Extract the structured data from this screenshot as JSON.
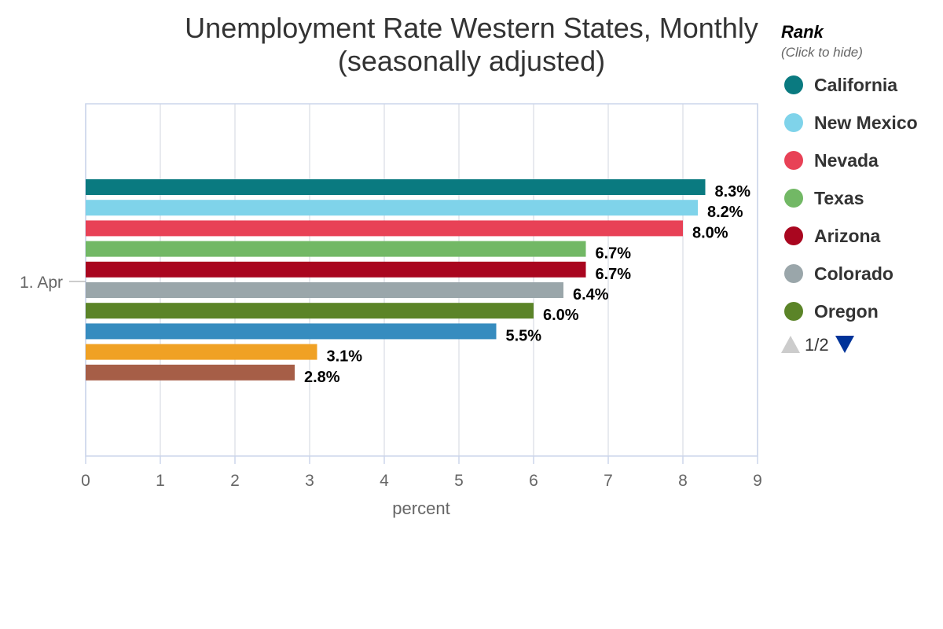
{
  "chart_data": {
    "type": "bar",
    "orientation": "horizontal",
    "title": "Unemployment Rate Western States, Monthly",
    "subtitle": "(seasonally adjusted)",
    "categories": [
      "1. Apr"
    ],
    "xlabel": "percent",
    "xlim": [
      0,
      9
    ],
    "ticks": [
      "0",
      "1",
      "2",
      "3",
      "4",
      "5",
      "6",
      "7",
      "8",
      "9"
    ],
    "grid": true,
    "series": [
      {
        "name": "California",
        "values": [
          8.3
        ],
        "label": "8.3%",
        "color": "#0a7a80"
      },
      {
        "name": "New Mexico",
        "values": [
          8.2
        ],
        "label": "8.2%",
        "color": "#7fd3ea"
      },
      {
        "name": "Nevada",
        "values": [
          8.0
        ],
        "label": "8.0%",
        "color": "#e84156"
      },
      {
        "name": "Texas",
        "values": [
          6.7
        ],
        "label": "6.7%",
        "color": "#72b865"
      },
      {
        "name": "Arizona",
        "values": [
          6.7
        ],
        "label": "6.7%",
        "color": "#a9061f"
      },
      {
        "name": "Colorado",
        "values": [
          6.4
        ],
        "label": "6.4%",
        "color": "#9aa6aa"
      },
      {
        "name": "Oregon",
        "values": [
          6.0
        ],
        "label": "6.0%",
        "color": "#5b8428"
      },
      {
        "name": "",
        "values": [
          5.5
        ],
        "label": "5.5%",
        "color": "#368cbf"
      },
      {
        "name": "",
        "values": [
          3.1
        ],
        "label": "3.1%",
        "color": "#f0a124"
      },
      {
        "name": "",
        "values": [
          2.8
        ],
        "label": "2.8%",
        "color": "#a65e47"
      }
    ],
    "legend": {
      "title": "Rank",
      "subtitle": "(Click to hide)",
      "placement": "right",
      "page": "1/2",
      "visible_count": 7
    }
  }
}
